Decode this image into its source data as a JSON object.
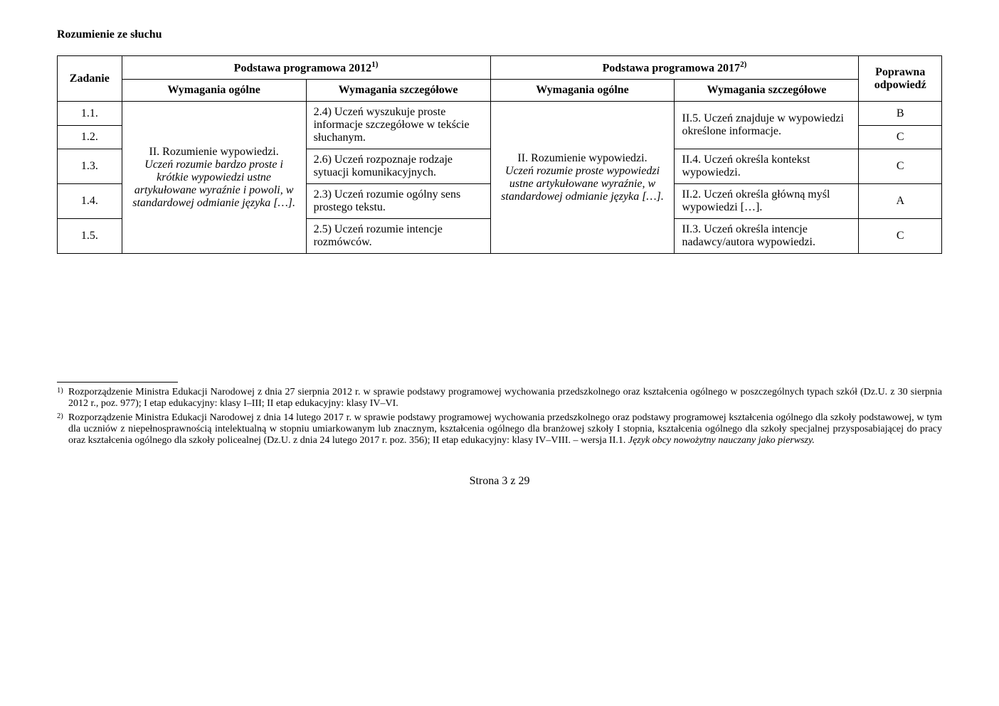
{
  "section_title": "Rozumienie ze słuchu",
  "table": {
    "headers": {
      "zadanie": "Zadanie",
      "podstawa_2012": "Podstawa programowa 2012",
      "podstawa_2012_sup": "1)",
      "podstawa_2017": "Podstawa programowa 2017",
      "podstawa_2017_sup": "2)",
      "poprawna": "Poprawna odpowiedź",
      "wym_ogolne": "Wymagania ogólne",
      "wym_szczeg": "Wymagania szczegółowe"
    },
    "merged_ogolne_2012": {
      "line1": "II. Rozumienie wypowiedzi.",
      "line2": "Uczeń rozumie bardzo proste i krótkie wypowiedzi ustne artykułowane wyraźnie i powoli, w standardowej odmianie języka […]."
    },
    "merged_ogolne_2017": {
      "line1": "II. Rozumienie wypowiedzi.",
      "line2": "Uczeń rozumie proste wypowiedzi ustne artykułowane wyraźnie, w standardowej odmianie języka […]."
    },
    "szczeg_2012_merged_1": "2.4) Uczeń wyszukuje proste informacje szczegółowe w tekście słuchanym.",
    "szczeg_2017_merged_1": "II.5. Uczeń znajduje w wypowiedzi określone informacje.",
    "rows": [
      {
        "zadanie": "1.1.",
        "odp": "B"
      },
      {
        "zadanie": "1.2.",
        "odp": "C"
      },
      {
        "zadanie": "1.3.",
        "szczeg_2012": "2.6) Uczeń rozpoznaje rodzaje sytuacji komunikacyjnych.",
        "szczeg_2017": "II.4. Uczeń określa kontekst wypowiedzi.",
        "odp": "C"
      },
      {
        "zadanie": "1.4.",
        "szczeg_2012": "2.3) Uczeń rozumie ogólny sens prostego tekstu.",
        "szczeg_2017": "II.2. Uczeń określa główną myśl wypowiedzi […].",
        "odp": "A"
      },
      {
        "zadanie": "1.5.",
        "szczeg_2012": "2.5) Uczeń rozumie intencje rozmówców.",
        "szczeg_2017": "II.3. Uczeń określa intencje nadawcy/autora wypowiedzi.",
        "odp": "C"
      }
    ]
  },
  "footnotes": {
    "fn1_marker": "1)",
    "fn1_text": "Rozporządzenie Ministra Edukacji Narodowej z dnia 27 sierpnia 2012 r. w sprawie podstawy programowej wychowania przedszkolnego oraz kształcenia ogólnego w poszczególnych typach szkół (Dz.U. z 30 sierpnia 2012 r., poz. 977); I etap edukacyjny: klasy I–III; II etap edukacyjny: klasy IV–VI.",
    "fn2_marker": "2)",
    "fn2_text_part1": "Rozporządzenie Ministra Edukacji Narodowej z dnia 14 lutego 2017 r. w sprawie podstawy programowej wychowania przedszkolnego oraz podstawy programowej kształcenia ogólnego dla szkoły podstawowej, w tym dla uczniów z niepełnosprawnością intelektualną w stopniu umiarkowanym lub znacznym, kształcenia ogólnego dla branżowej szkoły I stopnia, kształcenia ogólnego dla szkoły specjalnej przysposabiającej do pracy oraz kształcenia ogólnego dla szkoły policealnej (Dz.U. z dnia 24 lutego 2017 r. poz. 356); II etap edukacyjny: klasy IV–VIII. – wersja II.1. ",
    "fn2_text_italic": "Język obcy nowożytny nauczany jako pierwszy."
  },
  "page_number": "Strona 3 z 29"
}
